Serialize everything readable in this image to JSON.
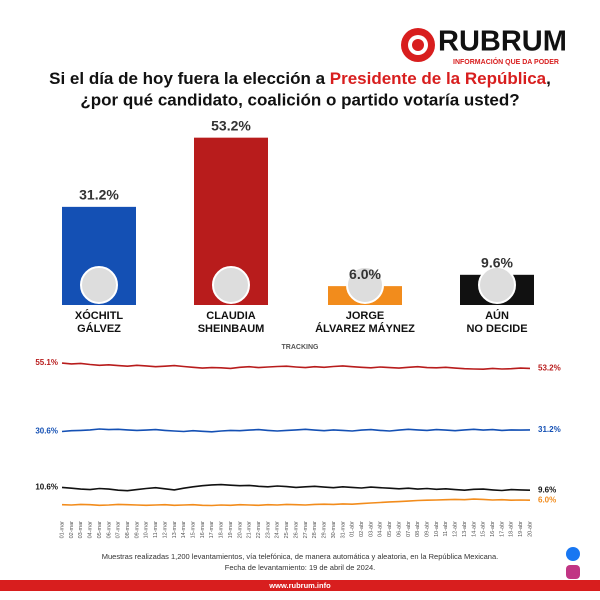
{
  "header": {
    "brand": "RUBRUM",
    "tagline": "INFORMACIÓN QUE DA PODER",
    "title_parts": [
      "Si el día de hoy fuera la elección a ",
      "Presidente de la República",
      ","
    ],
    "title_line2": "¿por qué candidato, coalición o partido votaría usted?"
  },
  "chart_data": [
    {
      "type": "bar",
      "categories": [
        [
          "XÓCHITL",
          "GÁLVEZ"
        ],
        [
          "CLAUDIA",
          "SHEINBAUM"
        ],
        [
          "JORGE",
          "ÁLVAREZ MÁYNEZ"
        ],
        [
          "AÚN",
          "NO DECIDE"
        ]
      ],
      "values": [
        31.2,
        53.2,
        6.0,
        9.6
      ],
      "value_labels": [
        "31.2%",
        "53.2%",
        "6.0%",
        "9.6%"
      ],
      "colors": [
        "#1450b4",
        "#b81c1c",
        "#f28c1c",
        "#111111"
      ],
      "ylim": [
        0,
        55
      ]
    },
    {
      "type": "line",
      "subtitle": "TRACKING",
      "x": [
        "01-mar",
        "02-mar",
        "03-mar",
        "04-mar",
        "05-mar",
        "06-mar",
        "07-mar",
        "08-mar",
        "09-mar",
        "10-mar",
        "11-mar",
        "12-mar",
        "13-mar",
        "14-mar",
        "15-mar",
        "16-mar",
        "17-mar",
        "18-mar",
        "19-mar",
        "20-mar",
        "21-mar",
        "22-mar",
        "23-mar",
        "24-mar",
        "25-mar",
        "26-mar",
        "27-mar",
        "28-mar",
        "29-mar",
        "30-mar",
        "31-mar",
        "01-abr",
        "02-abr",
        "03-abr",
        "04-abr",
        "05-abr",
        "06-abr",
        "07-abr",
        "08-abr",
        "09-abr",
        "10-abr",
        "11-abr",
        "12-abr",
        "13-abr",
        "14-abr",
        "15-abr",
        "16-abr",
        "17-abr",
        "18-abr",
        "19-abr",
        "20-abr"
      ],
      "ylim": [
        0,
        58
      ],
      "series": [
        {
          "name": "CLAUDIA SHEINBAUM",
          "color": "#b81c1c",
          "start_label": "55.1%",
          "end_label": "53.2%",
          "values": [
            55.1,
            54.8,
            55.0,
            54.6,
            54.3,
            54.5,
            54.2,
            54.0,
            54.3,
            54.1,
            53.8,
            54.0,
            54.2,
            53.9,
            53.6,
            53.3,
            53.5,
            53.4,
            53.2,
            53.6,
            53.8,
            53.5,
            53.7,
            53.9,
            54.0,
            53.7,
            53.5,
            53.8,
            53.6,
            53.9,
            54.1,
            53.8,
            53.6,
            53.4,
            53.7,
            53.5,
            53.3,
            53.6,
            53.8,
            53.5,
            53.4,
            53.6,
            53.3,
            53.1,
            53.0,
            52.9,
            53.2,
            53.0,
            53.1,
            53.3,
            53.2
          ]
        },
        {
          "name": "XÓCHITL GÁLVEZ",
          "color": "#1450b4",
          "start_label": "30.6%",
          "end_label": "31.2%",
          "values": [
            30.6,
            30.9,
            31.0,
            31.2,
            31.5,
            31.3,
            31.4,
            31.2,
            31.0,
            31.1,
            31.3,
            31.0,
            30.8,
            30.6,
            30.9,
            30.7,
            30.5,
            30.8,
            31.0,
            30.9,
            31.1,
            31.3,
            31.0,
            30.8,
            31.0,
            31.2,
            31.4,
            31.1,
            30.9,
            31.2,
            31.0,
            30.8,
            31.1,
            31.3,
            31.0,
            30.8,
            31.1,
            31.4,
            31.2,
            31.0,
            31.3,
            31.1,
            30.9,
            31.2,
            31.4,
            31.1,
            31.3,
            31.0,
            31.2,
            31.1,
            31.2
          ]
        },
        {
          "name": "AÚN NO DECIDE",
          "color": "#111111",
          "start_label": "10.6%",
          "end_label": "9.6%",
          "values": [
            10.6,
            10.3,
            10.0,
            9.8,
            10.2,
            10.0,
            9.6,
            9.4,
            9.8,
            10.2,
            10.5,
            10.1,
            9.7,
            10.3,
            10.8,
            11.2,
            11.5,
            11.6,
            11.4,
            11.2,
            11.3,
            11.0,
            10.8,
            11.1,
            10.9,
            10.6,
            10.8,
            11.0,
            10.7,
            10.5,
            10.8,
            10.6,
            10.4,
            10.7,
            10.5,
            10.3,
            10.1,
            10.3,
            10.0,
            10.2,
            9.9,
            10.1,
            9.8,
            9.6,
            9.9,
            10.0,
            9.7,
            9.5,
            9.8,
            9.7,
            9.6
          ]
        },
        {
          "name": "JORGE ÁLVAREZ MÁYNEZ",
          "color": "#f28c1c",
          "end_label": "6.0%",
          "values": [
            4.4,
            4.3,
            4.5,
            4.4,
            4.2,
            4.3,
            4.5,
            4.4,
            4.3,
            4.2,
            4.3,
            4.4,
            4.2,
            4.3,
            4.4,
            4.2,
            4.1,
            4.3,
            4.2,
            4.4,
            4.3,
            4.2,
            4.4,
            4.3,
            4.5,
            4.4,
            4.3,
            4.5,
            4.6,
            4.5,
            4.7,
            4.6,
            4.8,
            5.0,
            5.2,
            5.4,
            5.5,
            5.7,
            5.9,
            6.0,
            6.1,
            6.2,
            6.3,
            6.2,
            6.4,
            6.3,
            6.1,
            6.2,
            6.0,
            6.1,
            6.0
          ]
        }
      ]
    }
  ],
  "footer": {
    "note": "Muestras realizadas 1,200 levantamientos, vía telefónica, de manera automática y aleatoria, en la República Mexicana.",
    "date": "Fecha de levantamiento: 19 de abril de 2024.",
    "url": "www.rubrum.info"
  }
}
